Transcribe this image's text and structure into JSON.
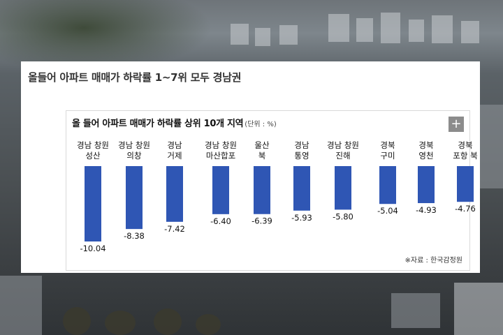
{
  "article": {
    "headline": "올들어 아파트 매매가 하락률 1~7위 모두 경남권"
  },
  "chart_data": {
    "type": "bar",
    "title": "올 들어 아파트 매매가 하락률 상위 10개 지역",
    "unit_label": "(단위 : %)",
    "categories": [
      [
        "경남 창원",
        "성산"
      ],
      [
        "경남 창원",
        "의창"
      ],
      [
        "경남",
        "거제"
      ],
      [
        "경남 창원",
        "마산합포"
      ],
      [
        "울산",
        "북"
      ],
      [
        "경남",
        "통영"
      ],
      [
        "경남 창원",
        "진해"
      ],
      [
        "경북",
        "구미"
      ],
      [
        "경북",
        "영천"
      ],
      [
        "경북",
        "포항 북"
      ]
    ],
    "values": [
      -10.04,
      -8.38,
      -7.42,
      -6.4,
      -6.39,
      -5.93,
      -5.8,
      -5.04,
      -4.93,
      -4.76
    ],
    "value_labels": [
      "-10.04",
      "-8.38",
      "-7.42",
      "-6.40",
      "-6.39",
      "-5.93",
      "-5.80",
      "-5.04",
      "-4.93",
      "-4.76"
    ],
    "ylim": [
      -11,
      0
    ],
    "bar_color": "#2f56b4",
    "grid": false,
    "source": "※자료 : 한국감정원"
  },
  "controls": {
    "expand_icon": "plus-icon",
    "expand_label": "+"
  }
}
